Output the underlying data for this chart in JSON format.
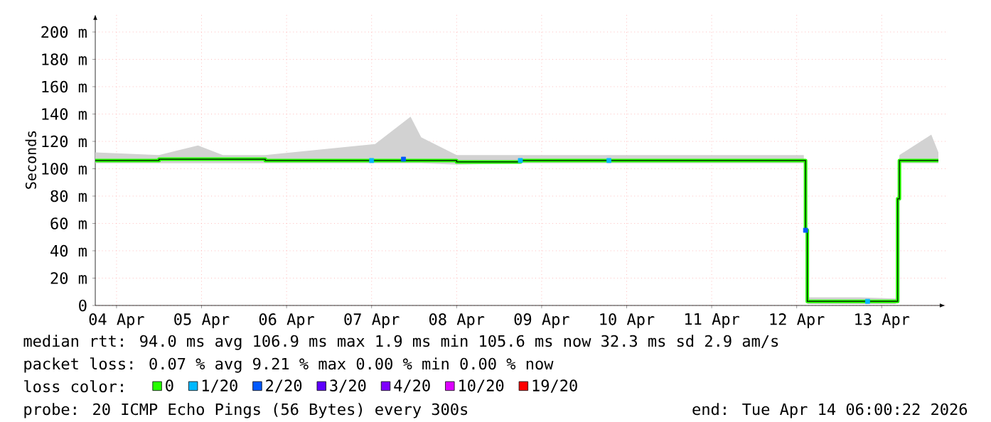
{
  "chart_data": {
    "type": "line",
    "ylabel": "Seconds",
    "xlim": [
      "2026-04-04T06:00",
      "2026-04-14T06:00"
    ],
    "xticks": [
      {
        "value": "2026-04-04T12:00",
        "label": "04 Apr"
      },
      {
        "value": "2026-04-05T12:00",
        "label": "05 Apr"
      },
      {
        "value": "2026-04-06T12:00",
        "label": "06 Apr"
      },
      {
        "value": "2026-04-07T12:00",
        "label": "07 Apr"
      },
      {
        "value": "2026-04-08T12:00",
        "label": "08 Apr"
      },
      {
        "value": "2026-04-09T12:00",
        "label": "09 Apr"
      },
      {
        "value": "2026-04-10T12:00",
        "label": "10 Apr"
      },
      {
        "value": "2026-04-11T12:00",
        "label": "11 Apr"
      },
      {
        "value": "2026-04-12T12:00",
        "label": "12 Apr"
      },
      {
        "value": "2026-04-13T12:00",
        "label": "13 Apr"
      }
    ],
    "ylim": [
      0,
      213
    ],
    "yticks": [
      0,
      {
        "value": 20,
        "label": "20 m"
      },
      {
        "value": 40,
        "label": "40 m"
      },
      {
        "value": 60,
        "label": "60 m"
      },
      {
        "value": 80,
        "label": "80 m"
      },
      {
        "value": 100,
        "label": "100 m"
      },
      {
        "value": 120,
        "label": "120 m"
      },
      {
        "value": 140,
        "label": "140 m"
      },
      {
        "value": 160,
        "label": "160 m"
      },
      {
        "value": 180,
        "label": "180 m"
      },
      {
        "value": 200,
        "label": "200 m"
      }
    ],
    "grid": true,
    "legend": "bottom",
    "legend_title": "loss color:",
    "series": [
      {
        "name": "0",
        "color": "#26ff00",
        "x": [
          "2026-04-04T06:00",
          "2026-04-05T00:00",
          "2026-04-05T11:00",
          "2026-04-05T18:00",
          "2026-04-06T06:00",
          "2026-04-07T13:00",
          "2026-04-07T23:00",
          "2026-04-08T02:00",
          "2026-04-08T12:00",
          "2026-04-09T06:00",
          "2026-04-10T06:00",
          "2026-04-11T06:00",
          "2026-04-12T06:00",
          "2026-04-12T14:00",
          "2026-04-12T14:30",
          "2026-04-12T15:00",
          "2026-04-13T06:00",
          "2026-04-13T16:00",
          "2026-04-13T16:30",
          "2026-04-13T17:00",
          "2026-04-14T02:00",
          "2026-04-14T04:00"
        ],
        "values": [
          106,
          107,
          107,
          107,
          106,
          106,
          106,
          106,
          105,
          106,
          106,
          106,
          106,
          106,
          55,
          3,
          3,
          3,
          78,
          106,
          106,
          106
        ],
        "lower": [
          104,
          104,
          104,
          104,
          104,
          104,
          104,
          104,
          103,
          104,
          104,
          104,
          104,
          104,
          52,
          1,
          1,
          1,
          76,
          104,
          104,
          104
        ],
        "upper": [
          112,
          110,
          117,
          110,
          110,
          118,
          138,
          123,
          110,
          110,
          110,
          110,
          110,
          110,
          65,
          6,
          6,
          5,
          80,
          110,
          125,
          112
        ]
      },
      {
        "name": "1/20",
        "color": "#00b8ff",
        "type": "scatter",
        "x": [
          "2026-04-07T12:00",
          "2026-04-09T06:00",
          "2026-04-10T07:00",
          "2026-04-13T08:00"
        ],
        "values": [
          106,
          106,
          106,
          3
        ]
      },
      {
        "name": "2/20",
        "color": "#0059ff",
        "type": "scatter",
        "x": [
          "2026-04-07T21:00",
          "2026-04-12T14:30"
        ],
        "values": [
          107,
          55
        ]
      },
      {
        "name": "3/20",
        "color": "#5e00ff",
        "type": "scatter"
      },
      {
        "name": "4/20",
        "color": "#7e00ff",
        "type": "scatter"
      },
      {
        "name": "10/20",
        "color": "#dd00ff",
        "type": "scatter"
      },
      {
        "name": "19/20",
        "color": "#ff0000",
        "type": "scatter"
      }
    ],
    "annotations": [
      "median rtt:  94.0 ms avg  106.9 ms max  1.9 ms min  105.6 ms now  32.3 ms sd  2.9   am/s",
      "packet loss: 0.07 % avg  9.21 % max  0.00 % min  0.00 % now",
      "probe:       20 ICMP Echo Pings (56 Bytes) every 300s",
      "end: Tue Apr 14 06:00:22 2026"
    ]
  }
}
